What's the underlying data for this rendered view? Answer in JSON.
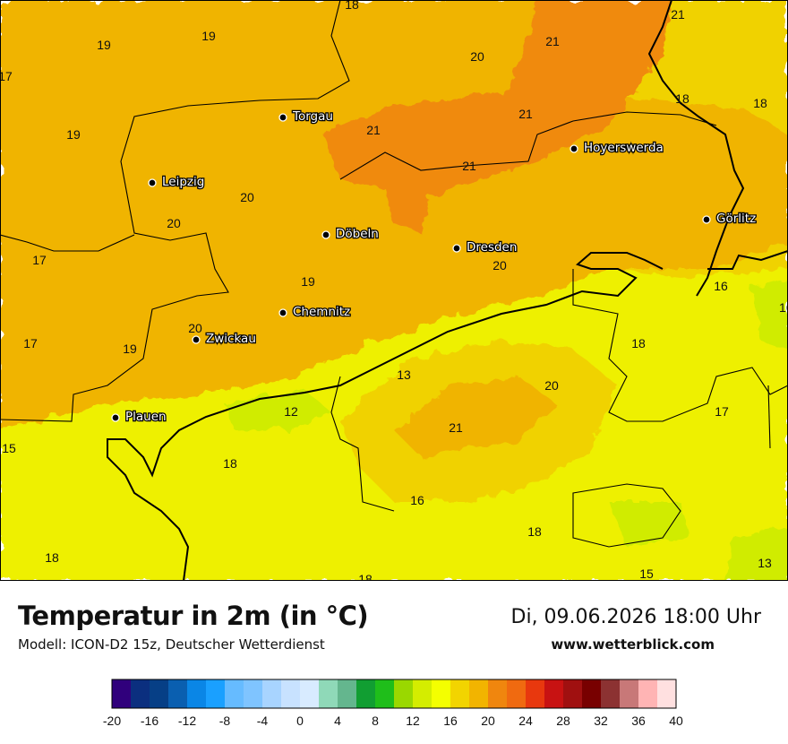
{
  "header": {
    "title": "Temperatur in 2m (in °C)",
    "model": "Modell: ICON-D2 15z, Deutscher Wetterdienst",
    "datetime": "Di, 09.06.2026 18:00 Uhr",
    "website": "www.wetterblick.com"
  },
  "cities": [
    {
      "name": "Torgau"
    },
    {
      "name": "Leipzig"
    },
    {
      "name": "Hoyerswerda"
    },
    {
      "name": "Döbeln"
    },
    {
      "name": "Dresden"
    },
    {
      "name": "Görlitz"
    },
    {
      "name": "Chemnitz"
    },
    {
      "name": "Zwickau"
    },
    {
      "name": "Plauen"
    }
  ],
  "temperature_labels": [
    "18",
    "21",
    "19",
    "21",
    "20",
    "17",
    "19",
    "18",
    "21",
    "18",
    "20",
    "21",
    "20",
    "21",
    "20",
    "17",
    "19",
    "19",
    "20",
    "19",
    "17",
    "13",
    "18",
    "20",
    "12",
    "15",
    "18",
    "21",
    "17",
    "16",
    "18",
    "18",
    "15",
    "13",
    "18",
    "16"
  ],
  "legend": {
    "ticks": [
      "-20",
      "-16",
      "-12",
      "-8",
      "-4",
      "0",
      "4",
      "8",
      "12",
      "16",
      "20",
      "24",
      "28",
      "32",
      "36",
      "40"
    ],
    "colors": [
      "#30007c",
      "#0b2f7f",
      "#063f86",
      "#0a5fb0",
      "#0a86e6",
      "#1aa0ff",
      "#66bbff",
      "#7fc4ff",
      "#a8d4ff",
      "#c8e2ff",
      "#d8ebff",
      "#8fd9b8",
      "#64b68e",
      "#119e32",
      "#1fbe1a",
      "#9ad800",
      "#d4ed00",
      "#f4ff00",
      "#f2d400",
      "#f2b400",
      "#f0860e",
      "#f06a10",
      "#e8380e",
      "#c81212",
      "#a01010",
      "#780000",
      "#8c3232",
      "#c87878",
      "#ffb4b4",
      "#ffe0e0"
    ],
    "palette": {
      "t13": "#d0ec00",
      "t16": "#eef000",
      "t18": "#f0d200",
      "t20": "#f0b400",
      "t21": "#f08a10"
    }
  }
}
